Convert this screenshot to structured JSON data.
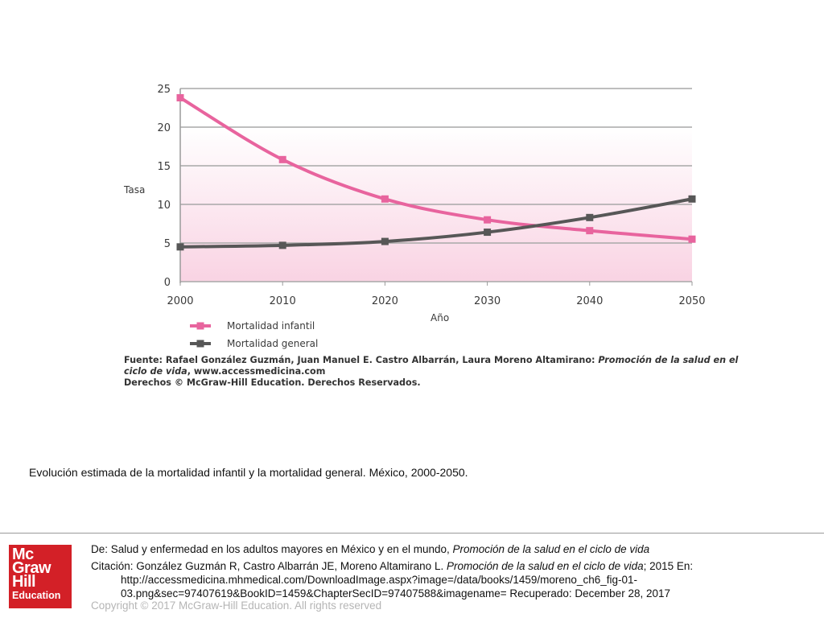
{
  "chart_data": {
    "type": "line",
    "x": [
      2000,
      2010,
      2020,
      2030,
      2040,
      2050
    ],
    "xlabel": "Año",
    "ylabel": "Tasa",
    "ylim": [
      0,
      25
    ],
    "yticks": [
      0,
      5,
      10,
      15,
      20,
      25
    ],
    "grid": "horizontal",
    "legend_position": "bottom-left",
    "series": [
      {
        "name": "Mortalidad infantil",
        "color": "#e8649e",
        "values": [
          23.8,
          15.8,
          10.7,
          8.0,
          6.6,
          5.5
        ]
      },
      {
        "name": "Mortalidad general",
        "color": "#575757",
        "values": [
          4.5,
          4.7,
          5.2,
          6.4,
          8.3,
          10.7
        ]
      }
    ]
  },
  "source": {
    "line1": "Fuente: Rafael González Guzmán, Juan Manuel E. Castro Albarrán, Laura Moreno Altamirano: ",
    "line1_italic": "Promoción de la salud en el",
    "line2_italic": "ciclo de vida",
    "line2": ", www.accessmedicina.com",
    "line3": "Derechos © McGraw-Hill Education. Derechos Reservados."
  },
  "caption": "Evolución estimada de la mortalidad infantil y la mortalidad general. México, 2000-2050.",
  "logo": {
    "line1": "Mc",
    "line2": "Graw",
    "line3": "Hill",
    "line4": "Education",
    "color": "#d32027"
  },
  "citation": {
    "de_label": "De:",
    "de_text": " Salud y enfermedad en los adultos mayores en México y en el mundo, ",
    "de_italic": "Promoción de la salud en el ciclo de vida",
    "cit_label": "Citación: ",
    "cit_text": "González Guzmán R, Castro Albarrán JE, Moreno Altamirano L. ",
    "cit_italic": "Promoción de la salud en el ciclo de vida",
    "cit_text2": "; 2015 En:",
    "url_line1": "http://accessmedicina.mhmedical.com/DownloadImage.aspx?image=/data/books/1459/moreno_ch6_fig-01-",
    "url_line2": "03.png&sec=97407619&BookID=1459&ChapterSecID=97407588&imagename= Recuperado: December 28, 2017"
  },
  "copyright": "Copyright © 2017 McGraw-Hill Education. All rights reserved"
}
